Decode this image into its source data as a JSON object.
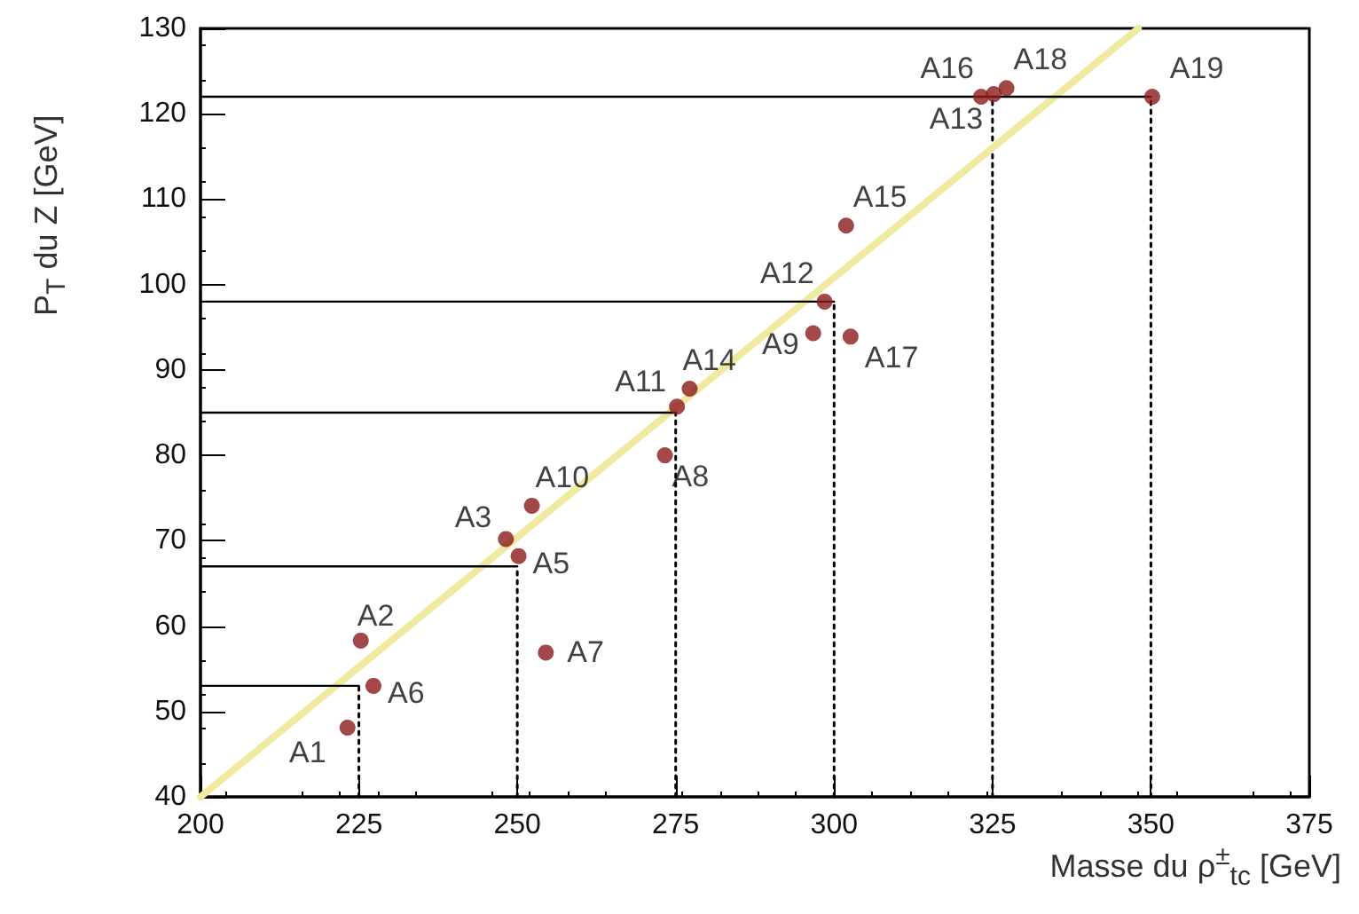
{
  "chart_data": {
    "type": "scatter",
    "xlabel": "Masse du ρ$^{±}$$_{tc}$ [GeV]",
    "ylabel": "P$_{T}$ du Z [GeV]",
    "xlim": [
      200,
      375
    ],
    "xticks": [
      200,
      225,
      250,
      275,
      300,
      325,
      350,
      375
    ],
    "ylim": [
      40,
      130
    ],
    "yticks": [
      40,
      50,
      60,
      70,
      80,
      90,
      100,
      110,
      120,
      130
    ],
    "series": [
      {
        "type": "scatter",
        "marker": "circle",
        "color": "#8b1a1a",
        "x": [
          223.2,
          225.3,
          248.2,
          250.2,
          227.3,
          254.5,
          273.3,
          296.7,
          252.3,
          275.2,
          298.5,
          325.2,
          277.2,
          301.9,
          323.2,
          302.6,
          327.2,
          350.2
        ],
        "values": [
          48.1,
          58.3,
          70.2,
          68.2,
          53.0,
          56.9,
          80.0,
          94.3,
          74.1,
          85.7,
          98.0,
          122.3,
          87.8,
          106.9,
          122.0,
          93.9,
          123.0,
          122.0
        ]
      },
      {
        "type": "line",
        "color": "#f0eaa0",
        "line_style": "solid",
        "x": [
          200,
          348
        ],
        "values": [
          40,
          130
        ]
      },
      {
        "type": "line",
        "color": "#000000",
        "line_style": "solid",
        "x": [
          200,
          225
        ],
        "values": [
          53,
          53
        ]
      },
      {
        "type": "line",
        "color": "#000000",
        "line_style": "solid",
        "x": [
          200,
          250
        ],
        "values": [
          67,
          67
        ]
      },
      {
        "type": "line",
        "color": "#000000",
        "line_style": "solid",
        "x": [
          200,
          275
        ],
        "values": [
          85,
          85
        ]
      },
      {
        "type": "line",
        "color": "#000000",
        "line_style": "solid",
        "x": [
          200,
          300
        ],
        "values": [
          98,
          98
        ]
      },
      {
        "type": "line",
        "color": "#000000",
        "line_style": "solid",
        "x": [
          200,
          350
        ],
        "values": [
          122,
          122
        ]
      },
      {
        "type": "line",
        "color": "#000000",
        "line_style": "dotted",
        "x": [
          225,
          225
        ],
        "values": [
          40,
          53
        ]
      },
      {
        "type": "line",
        "color": "#000000",
        "line_style": "dotted",
        "x": [
          250,
          250
        ],
        "values": [
          40,
          67
        ]
      },
      {
        "type": "line",
        "color": "#000000",
        "line_style": "dotted",
        "x": [
          275,
          275
        ],
        "values": [
          40,
          85
        ]
      },
      {
        "type": "line",
        "color": "#000000",
        "line_style": "dotted",
        "x": [
          300,
          300
        ],
        "values": [
          40,
          98
        ]
      },
      {
        "type": "line",
        "color": "#000000",
        "line_style": "dotted",
        "x": [
          325,
          325
        ],
        "values": [
          40,
          122
        ]
      },
      {
        "type": "line",
        "color": "#000000",
        "line_style": "dotted",
        "x": [
          350,
          350
        ],
        "values": [
          40,
          122
        ]
      }
    ],
    "annotations": [
      {
        "text": "A1",
        "x": 223.2,
        "y": 48.1
      },
      {
        "text": "A2",
        "x": 225.3,
        "y": 58.3
      },
      {
        "text": "A3",
        "x": 248.2,
        "y": 70.2
      },
      {
        "text": "A5",
        "x": 250.2,
        "y": 68.2
      },
      {
        "text": "A6",
        "x": 227.3,
        "y": 53.0
      },
      {
        "text": "A7",
        "x": 254.5,
        "y": 56.9
      },
      {
        "text": "A8",
        "x": 273.3,
        "y": 80.0
      },
      {
        "text": "A9",
        "x": 296.7,
        "y": 94.3
      },
      {
        "text": "A10",
        "x": 252.3,
        "y": 74.1
      },
      {
        "text": "A11",
        "x": 275.2,
        "y": 85.7
      },
      {
        "text": "A12",
        "x": 298.5,
        "y": 98.0
      },
      {
        "text": "A13",
        "x": 325.2,
        "y": 122.3
      },
      {
        "text": "A14",
        "x": 277.2,
        "y": 87.8
      },
      {
        "text": "A15",
        "x": 301.9,
        "y": 106.9
      },
      {
        "text": "A16",
        "x": 323.2,
        "y": 122.0
      },
      {
        "text": "A17",
        "x": 302.6,
        "y": 93.9
      },
      {
        "text": "A18",
        "x": 327.2,
        "y": 123.0
      },
      {
        "text": "A19",
        "x": 350.2,
        "y": 122.0
      }
    ]
  }
}
